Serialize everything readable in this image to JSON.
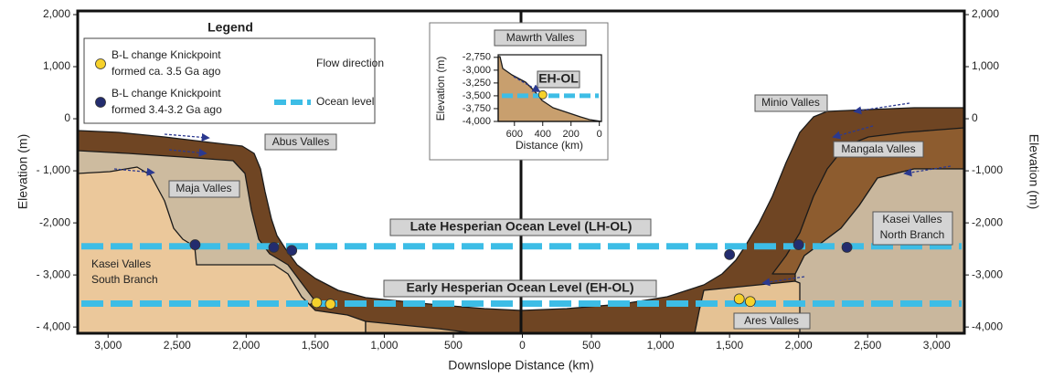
{
  "chart_data": [
    {
      "type": "profile",
      "xlabel": "Downslope Distance (km)",
      "ylabel": "Elevation (m)",
      "y2label": "Elevation (m)",
      "xlim": [
        -3220,
        3200
      ],
      "ylim": [
        -4120,
        2070
      ],
      "y2lim": [
        -4120,
        2070
      ],
      "xticks": [
        {
          "value": -3000,
          "label": "3,000"
        },
        {
          "value": -2500,
          "label": "2,500"
        },
        {
          "value": -2000,
          "label": "2,000"
        },
        {
          "value": -1500,
          "label": "1,500"
        },
        {
          "value": -1000,
          "label": "1,000"
        },
        {
          "value": -500,
          "label": "500"
        },
        0,
        500,
        {
          "value": 1000,
          "label": "1,000"
        },
        {
          "value": 1500,
          "label": "1,500"
        },
        {
          "value": 2000,
          "label": "2,000"
        },
        {
          "value": 2500,
          "label": "2,500"
        },
        {
          "value": 3000,
          "label": "3,000"
        }
      ],
      "yticks": [
        {
          "value": 2000,
          "label": "2,000"
        },
        {
          "value": 1000,
          "label": "1,000"
        },
        0,
        {
          "value": -1000,
          "label": "- 1,000"
        },
        {
          "value": -2000,
          "label": "-2,000"
        },
        {
          "value": -3000,
          "label": "- 3,000"
        },
        {
          "value": -4000,
          "label": "- 4,000"
        }
      ],
      "y2ticks": [
        {
          "value": 2000,
          "label": "2,000"
        },
        {
          "value": 1000,
          "label": "1,000"
        },
        0,
        {
          "value": -1000,
          "label": "-1,000"
        },
        {
          "value": -2000,
          "label": "-2,000"
        },
        {
          "value": -3000,
          "label": "-3,000"
        },
        {
          "value": -4000,
          "label": "-4,000"
        }
      ],
      "ocean_color": "#3dbde6",
      "flow_color": "#2b3990",
      "ocean_levels": [
        {
          "name": "Late Hesperian Ocean Level (LH-OL)",
          "value": -2450
        },
        {
          "name": "Early Hesperian Ocean Level (EH-OL)",
          "value": -3550
        }
      ],
      "series": [
        {
          "name": [
            "B-L change Knickpoint",
            "formed ca. 3.5 Ga ago"
          ],
          "color": "#f6d12b",
          "x": [
            -1490,
            -1390,
            1570,
            1650
          ],
          "y": [
            -3530,
            -3560,
            -3460,
            -3510
          ]
        },
        {
          "name": [
            "B-L change Knickpoint",
            "formed 3.4-3.2 Ga ago"
          ],
          "color": "#232c6e",
          "x": [
            -2370,
            -1800,
            -1670,
            1500,
            2000,
            2350
          ],
          "y": [
            -2420,
            -2470,
            -2530,
            -2610,
            -2420,
            -2470
          ]
        }
      ],
      "legend": {
        "title": "Legend",
        "flow_label": "Flow direction",
        "ocean_label": "Ocean level"
      },
      "annotations": [
        [
          "Abus Valles"
        ],
        [
          "Maja Valles"
        ],
        [
          "Kasei Valles",
          "South Branch"
        ],
        [
          "Minio Valles"
        ],
        [
          "Mangala Valles"
        ],
        [
          "Kasei Valles",
          "North Branch"
        ],
        [
          "Ares Valles"
        ]
      ]
    },
    {
      "type": "profile",
      "title": "Mawrth Valles",
      "annotation": "EH-OL",
      "xlabel": "Distance (km)",
      "ylabel": "Elevation (m)",
      "xlim": [
        715,
        -15
      ],
      "ylim": [
        -4000,
        -2700
      ],
      "xticks": [
        600,
        400,
        200,
        0
      ],
      "yticks": [
        {
          "value": -2750,
          "label": "-2,750"
        },
        {
          "value": -3000,
          "label": "-3,000"
        },
        {
          "value": -3250,
          "label": "-3,250"
        },
        {
          "value": -3500,
          "label": "-3,500"
        },
        {
          "value": -3750,
          "label": "-3,750"
        },
        {
          "value": -4000,
          "label": "-4,000"
        }
      ],
      "ocean_color": "#3dbde6",
      "ocean_levels": [
        {
          "value": -3500
        }
      ],
      "series": [
        {
          "color": "#f6d12b",
          "x": [
            400
          ],
          "y": [
            -3480
          ]
        }
      ]
    }
  ]
}
